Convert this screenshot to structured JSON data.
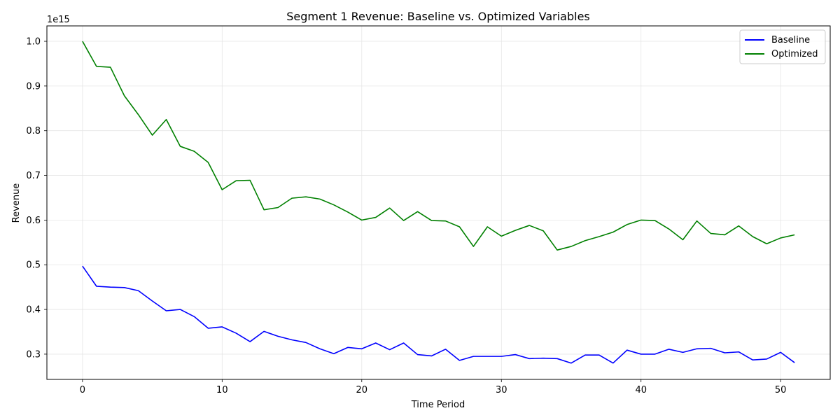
{
  "chart_data": {
    "type": "line",
    "title": "Segment 1 Revenue: Baseline vs. Optimized Variables",
    "xlabel": "Time Period",
    "ylabel": "Revenue",
    "y_scale_text": "1e15",
    "xlim": [
      -2.55,
      53.55
    ],
    "ylim": [
      0.2435,
      1.0345
    ],
    "x_ticks": [
      0,
      10,
      20,
      30,
      40,
      50
    ],
    "x_tick_labels": [
      "0",
      "10",
      "20",
      "30",
      "40",
      "50"
    ],
    "y_ticks": [
      0.3,
      0.4,
      0.5,
      0.6,
      0.7,
      0.8,
      0.9,
      1.0
    ],
    "y_tick_labels": [
      "0.3",
      "0.4",
      "0.5",
      "0.6",
      "0.7",
      "0.8",
      "0.9",
      "1.0"
    ],
    "grid": true,
    "legend_position": "top-right",
    "series": [
      {
        "name": "Baseline",
        "color": "#0000ff",
        "x": [
          0,
          1,
          2,
          3,
          4,
          5,
          6,
          7,
          8,
          9,
          10,
          11,
          12,
          13,
          14,
          15,
          16,
          17,
          18,
          19,
          20,
          21,
          22,
          23,
          24,
          25,
          26,
          27,
          28,
          29,
          30,
          31,
          32,
          33,
          34,
          35,
          36,
          37,
          38,
          39,
          40,
          41,
          42,
          43,
          44,
          45,
          46,
          47,
          48,
          49,
          50,
          51
        ],
        "values": [
          0.497,
          0.452,
          0.45,
          0.449,
          0.442,
          0.419,
          0.397,
          0.4,
          0.384,
          0.358,
          0.361,
          0.347,
          0.328,
          0.351,
          0.34,
          0.332,
          0.326,
          0.312,
          0.301,
          0.315,
          0.312,
          0.325,
          0.31,
          0.325,
          0.299,
          0.296,
          0.311,
          0.286,
          0.295,
          0.295,
          0.295,
          0.299,
          0.29,
          0.291,
          0.29,
          0.28,
          0.298,
          0.298,
          0.28,
          0.309,
          0.3,
          0.3,
          0.311,
          0.304,
          0.312,
          0.313,
          0.303,
          0.305,
          0.287,
          0.289,
          0.304,
          0.281
        ]
      },
      {
        "name": "Optimized",
        "color": "#008000",
        "x": [
          0,
          1,
          2,
          3,
          4,
          5,
          6,
          7,
          8,
          9,
          10,
          11,
          12,
          13,
          14,
          15,
          16,
          17,
          18,
          19,
          20,
          21,
          22,
          23,
          24,
          25,
          26,
          27,
          28,
          29,
          30,
          31,
          32,
          33,
          34,
          35,
          36,
          37,
          38,
          39,
          40,
          41,
          42,
          43,
          44,
          45,
          46,
          47,
          48,
          49,
          50,
          51
        ],
        "values": [
          1.0,
          0.944,
          0.942,
          0.878,
          0.836,
          0.79,
          0.825,
          0.765,
          0.754,
          0.729,
          0.668,
          0.688,
          0.689,
          0.623,
          0.628,
          0.649,
          0.652,
          0.647,
          0.634,
          0.618,
          0.6,
          0.606,
          0.627,
          0.599,
          0.619,
          0.599,
          0.598,
          0.585,
          0.541,
          0.585,
          0.564,
          0.577,
          0.588,
          0.576,
          0.533,
          0.541,
          0.554,
          0.563,
          0.573,
          0.59,
          0.6,
          0.599,
          0.58,
          0.556,
          0.598,
          0.57,
          0.567,
          0.587,
          0.563,
          0.547,
          0.56,
          0.567
        ]
      }
    ]
  }
}
